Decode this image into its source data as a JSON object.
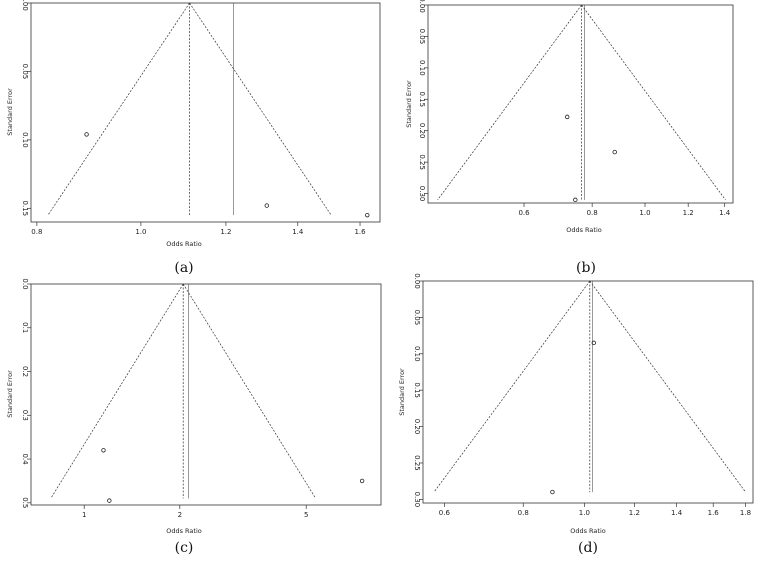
{
  "chart_data": [
    {
      "type": "scatter",
      "panel_label": "(a)",
      "xlabel": "Odds Ratio",
      "ylabel": "Standard Error",
      "x_scale": "log",
      "x_ticks": [
        0.8,
        1.0,
        1.2,
        1.4,
        1.6
      ],
      "x_tick_labels": [
        "0.8",
        "1.0",
        "1.2",
        "1.4",
        "1.6"
      ],
      "xlim": [
        0.79,
        1.67
      ],
      "y_ticks": [
        0.0,
        0.05,
        0.1,
        0.15
      ],
      "y_tick_labels": [
        "0.00",
        "0.05",
        "0.10",
        "0.15"
      ],
      "ylim": [
        0.0,
        0.16
      ],
      "points": [
        {
          "x": 0.89,
          "y": 0.096
        },
        {
          "x": 1.31,
          "y": 0.148
        },
        {
          "x": 1.625,
          "y": 0.155
        }
      ],
      "pooled": 1.11,
      "ref_line": 1.22,
      "funnel_bottom_se": 0.155
    },
    {
      "type": "scatter",
      "panel_label": "(b)",
      "xlabel": "Odds Ratio",
      "ylabel": "Standard Error",
      "x_scale": "log",
      "x_ticks": [
        0.6,
        0.8,
        1.0,
        1.2,
        1.4
      ],
      "x_tick_labels": [
        "0.6",
        "0.8",
        "1.0",
        "1.2",
        "1.4"
      ],
      "xlim": [
        0.4,
        1.45
      ],
      "y_ticks": [
        0.0,
        0.05,
        0.1,
        0.15,
        0.2,
        0.25,
        0.3
      ],
      "y_tick_labels": [
        "0.00",
        "0.05",
        "0.10",
        "0.15",
        "0.20",
        "0.25",
        "0.30"
      ],
      "ylim": [
        0.0,
        0.315
      ],
      "points": [
        {
          "x": 0.72,
          "y": 0.178
        },
        {
          "x": 0.88,
          "y": 0.234
        },
        {
          "x": 0.745,
          "y": 0.31
        }
      ],
      "pooled": 0.765,
      "ref_line": 0.775,
      "funnel_bottom_se": 0.31
    },
    {
      "type": "scatter",
      "panel_label": "(c)",
      "xlabel": "Odds Ratio",
      "ylabel": "Standard Error",
      "x_scale": "log",
      "x_ticks": [
        1,
        2,
        5
      ],
      "x_tick_labels": [
        "1",
        "2",
        "5"
      ],
      "xlim": [
        0.68,
        8.6
      ],
      "y_ticks": [
        0.0,
        0.1,
        0.2,
        0.3,
        0.4,
        0.5
      ],
      "y_tick_labels": [
        "0.0",
        "0.1",
        "0.2",
        "0.3",
        "0.4",
        "0.5"
      ],
      "ylim": [
        0.0,
        0.505
      ],
      "points": [
        {
          "x": 1.15,
          "y": 0.38
        },
        {
          "x": 1.2,
          "y": 0.495
        },
        {
          "x": 7.5,
          "y": 0.45
        }
      ],
      "pooled": 2.05,
      "ref_line": 2.13,
      "funnel_bottom_se": 0.49
    },
    {
      "type": "scatter",
      "panel_label": "(d)",
      "xlabel": "Odds Ratio",
      "ylabel": "Standard Error",
      "x_scale": "log",
      "x_ticks": [
        0.6,
        0.8,
        1.0,
        1.2,
        1.4,
        1.6,
        1.8
      ],
      "x_tick_labels": [
        "0.6",
        "0.8",
        "1.0",
        "1.2",
        "1.4",
        "1.6",
        "1.8"
      ],
      "xlim": [
        0.555,
        1.85
      ],
      "y_ticks": [
        0.0,
        0.05,
        0.1,
        0.15,
        0.2,
        0.25,
        0.3
      ],
      "y_tick_labels": [
        "0.00",
        "0.05",
        "0.10",
        "0.15",
        "0.20",
        "0.25",
        "0.30"
      ],
      "ylim": [
        0.0,
        0.305
      ],
      "points": [
        {
          "x": 1.035,
          "y": 0.085
        },
        {
          "x": 0.89,
          "y": 0.29
        }
      ],
      "pooled": 1.02,
      "ref_line": 1.03,
      "funnel_bottom_se": 0.29
    }
  ]
}
